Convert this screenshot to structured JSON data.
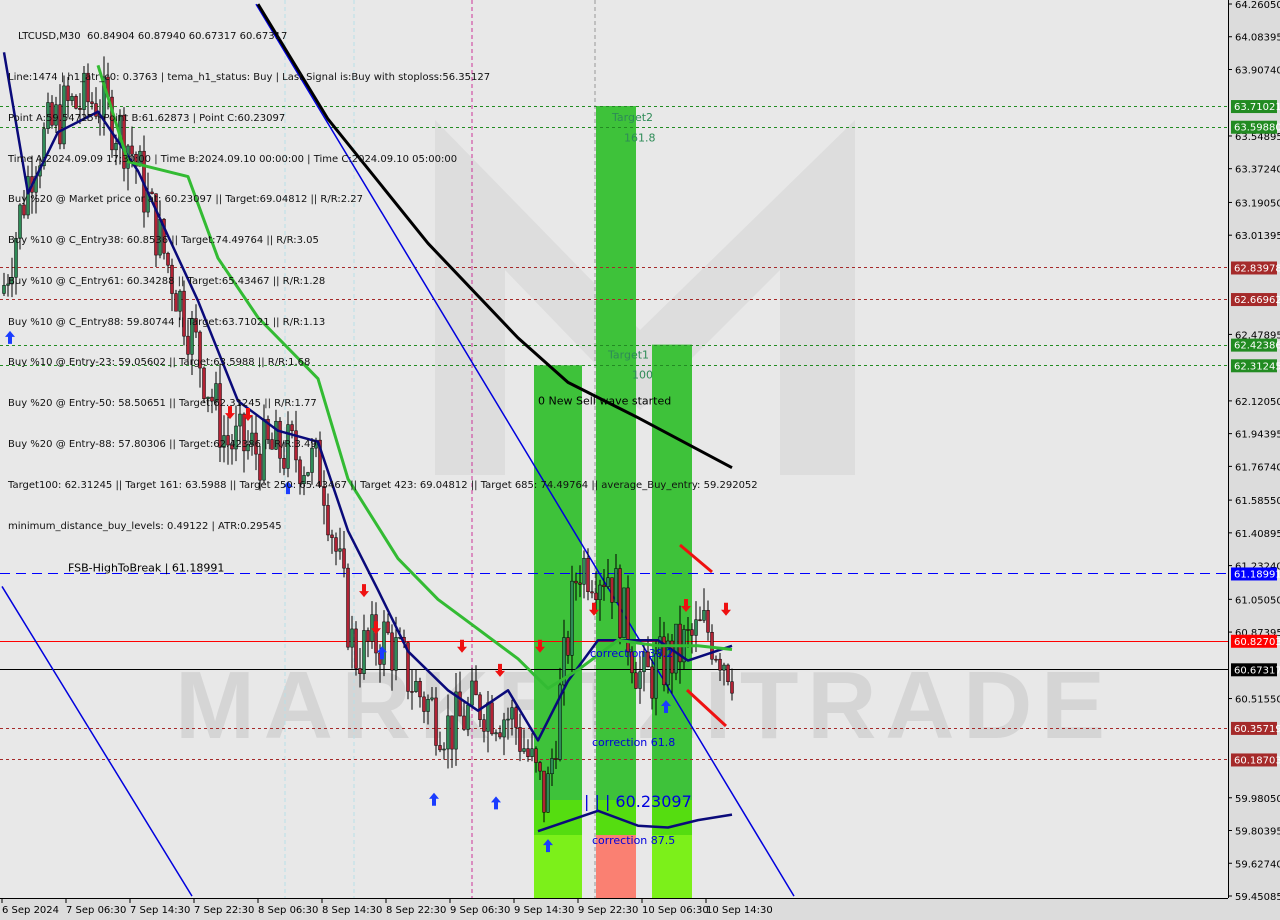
{
  "header": {
    "title_line": "LTCUSD,M30  60.84904 60.87940 60.67317 60.67317",
    "info_lines": [
      "Line:1474 | h1_atr_c0: 0.3763 | tema_h1_status: Buy | Last Signal is:Buy with stoploss:56.35127",
      "Point A:59.54725 | Point B:61.62873 | Point C:60.23097",
      "Time A:2024.09.09 17:30:00 | Time B:2024.09.10 00:00:00 | Time C:2024.09.10 05:00:00",
      "Buy %20 @ Market price or at: 60.23097 || Target:69.04812 || R/R:2.27",
      "Buy %10 @ C_Entry38: 60.8536 || Target:74.49764 || R/R:3.05",
      "Buy %10 @ C_Entry61: 60.34288 || Target:65.43467 || R/R:1.28",
      "Buy %10 @ C_Entry88: 59.80744 || Target:63.71021 || R/R:1.13",
      "Buy %10 @ Entry-23: 59.05602 || Target:63.5988 || R/R:1.68",
      "Buy %20 @ Entry-50: 58.50651 || Target:62.31245 || R/R:1.77",
      "Buy %20 @ Entry-88: 57.80306 || Target:62.42386 || R/R:3.49",
      "Target100: 62.31245 || Target 161: 63.5988 || Target 250: 65.43467 || Target 423: 69.04812 || Target 685: 74.49764 || average_Buy_entry: 59.292052",
      "minimum_distance_buy_levels: 0.49122 | ATR:0.29545"
    ]
  },
  "watermark": "MARKETZITRADE",
  "chart_data": {
    "type": "candlestick",
    "symbol": "LTCUSD",
    "timeframe": "M30",
    "ylim": [
      59.45085,
      64.2605
    ],
    "y_ticks": [
      "64.26050",
      "64.08395",
      "63.90740",
      "63.54895",
      "63.37240",
      "63.19050",
      "63.01395",
      "62.47895",
      "62.12050",
      "61.94395",
      "61.76740",
      "61.58550",
      "61.40895",
      "61.23240",
      "61.05050",
      "60.87395",
      "60.51550",
      "59.98050",
      "59.80395",
      "59.62740",
      "59.45085"
    ],
    "x_ticks": [
      {
        "t": "2024-09-06 22:30",
        "label": "6 Sep 2024"
      },
      {
        "t": "2024-09-07 06:30",
        "label": "7 Sep 06:30"
      },
      {
        "t": "2024-09-07 14:30",
        "label": "7 Sep 14:30"
      },
      {
        "t": "2024-09-07 22:30",
        "label": "7 Sep 22:30"
      },
      {
        "t": "2024-09-08 06:30",
        "label": "8 Sep 06:30"
      },
      {
        "t": "2024-09-08 14:30",
        "label": "8 Sep 14:30"
      },
      {
        "t": "2024-09-08 22:30",
        "label": "8 Sep 22:30"
      },
      {
        "t": "2024-09-09 06:30",
        "label": "9 Sep 06:30"
      },
      {
        "t": "2024-09-09 14:30",
        "label": "9 Sep 14:30"
      },
      {
        "t": "2024-09-09 22:30",
        "label": "9 Sep 22:30"
      },
      {
        "t": "2024-09-10 06:30",
        "label": "10 Sep 06:30"
      },
      {
        "t": "2024-09-10 14:30",
        "label": "10 Sep 14:30"
      }
    ],
    "price_path": [
      [
        "2024-09-06 22:30",
        62.7
      ],
      [
        "2024-09-07 02:30",
        63.45
      ],
      [
        "2024-09-07 06:30",
        63.7
      ],
      [
        "2024-09-07 10:30",
        63.75
      ],
      [
        "2024-09-07 14:30",
        63.5
      ],
      [
        "2024-09-07 18:30",
        62.95
      ],
      [
        "2024-09-07 22:30",
        62.45
      ],
      [
        "2024-09-08 02:30",
        61.9
      ],
      [
        "2024-09-08 06:30",
        61.85
      ],
      [
        "2024-09-08 10:30",
        61.85
      ],
      [
        "2024-09-08 14:30",
        61.75
      ],
      [
        "2024-09-08 18:30",
        60.75
      ],
      [
        "2024-09-08 22:30",
        60.85
      ],
      [
        "2024-09-09 02:30",
        60.55
      ],
      [
        "2024-09-09 06:30",
        60.35
      ],
      [
        "2024-09-09 10:30",
        60.5
      ],
      [
        "2024-09-09 14:30",
        60.4
      ],
      [
        "2024-09-09 18:30",
        59.95
      ],
      [
        "2024-09-09 22:30",
        61.25
      ],
      [
        "2024-09-10 02:30",
        61.2
      ],
      [
        "2024-09-10 06:30",
        60.6
      ],
      [
        "2024-09-10 10:30",
        60.75
      ],
      [
        "2024-09-10 14:30",
        60.9
      ],
      [
        "2024-09-10 18:00",
        60.67
      ]
    ],
    "moving_averages": [
      {
        "color": "#000000",
        "points": [
          [
            "2024-09-08 06:30",
            64.26
          ],
          [
            "2024-09-08 15:15",
            63.64
          ],
          [
            "2024-09-09 03:45",
            62.97
          ],
          [
            "2024-09-09 15:00",
            62.46
          ],
          [
            "2024-09-09 21:15",
            62.22
          ],
          [
            "2024-09-10 06:00",
            62.03
          ],
          [
            "2024-09-10 17:45",
            61.76
          ]
        ]
      },
      {
        "color": "#0a0a7a",
        "points": [
          [
            "2024-09-06 22:45",
            64.0
          ],
          [
            "2024-09-07 01:45",
            63.24
          ],
          [
            "2024-09-07 05:30",
            63.57
          ],
          [
            "2024-09-07 10:30",
            63.68
          ],
          [
            "2024-09-07 15:30",
            63.36
          ],
          [
            "2024-09-07 23:00",
            62.66
          ],
          [
            "2024-09-08 04:00",
            62.12
          ],
          [
            "2024-09-08 09:00",
            61.96
          ],
          [
            "2024-09-08 14:00",
            61.9
          ],
          [
            "2024-09-08 17:45",
            61.42
          ],
          [
            "2024-09-08 21:30",
            61.1
          ],
          [
            "2024-09-09 01:15",
            60.77
          ],
          [
            "2024-09-09 06:15",
            60.56
          ],
          [
            "2024-09-09 10:00",
            60.45
          ],
          [
            "2024-09-09 13:45",
            60.56
          ],
          [
            "2024-09-09 17:30",
            60.29
          ],
          [
            "2024-09-09 21:15",
            60.61
          ],
          [
            "2024-09-10 01:00",
            60.83
          ],
          [
            "2024-09-10 04:45",
            60.83
          ],
          [
            "2024-09-10 08:30",
            60.83
          ],
          [
            "2024-09-10 12:15",
            60.72
          ],
          [
            "2024-09-10 17:45",
            60.8
          ]
        ]
      },
      {
        "color": "#33bb33",
        "points": [
          [
            "2024-09-07 10:30",
            63.93
          ],
          [
            "2024-09-07 14:15",
            63.41
          ],
          [
            "2024-09-07 21:45",
            63.33
          ],
          [
            "2024-09-08 01:30",
            62.89
          ],
          [
            "2024-09-08 06:30",
            62.57
          ],
          [
            "2024-09-08 14:00",
            62.24
          ],
          [
            "2024-09-08 17:45",
            61.7
          ],
          [
            "2024-09-09 00:00",
            61.27
          ],
          [
            "2024-09-09 05:00",
            61.05
          ],
          [
            "2024-09-09 10:00",
            60.89
          ],
          [
            "2024-09-09 15:00",
            60.73
          ],
          [
            "2024-09-09 18:45",
            60.57
          ],
          [
            "2024-09-09 22:30",
            60.67
          ],
          [
            "2024-09-10 03:30",
            60.83
          ],
          [
            "2024-09-10 08:30",
            60.8
          ],
          [
            "2024-09-10 13:30",
            60.8
          ],
          [
            "2024-09-10 17:45",
            60.78
          ]
        ]
      },
      {
        "color": "#0a0a7a",
        "points": [
          [
            "2024-09-09 17:30",
            59.8
          ],
          [
            "2024-09-10 01:00",
            59.91
          ],
          [
            "2024-09-10 06:00",
            59.83
          ],
          [
            "2024-09-10 09:45",
            59.82
          ],
          [
            "2024-09-10 13:30",
            59.86
          ],
          [
            "2024-09-10 17:45",
            59.89
          ]
        ]
      }
    ],
    "trendlines": [
      {
        "color": "#0000dd",
        "from": [
          "2024-09-08 06:15",
          64.26
        ],
        "to": [
          "2024-09-11 01:30",
          59.45
        ]
      },
      {
        "color": "#0000dd",
        "from": [
          "2024-09-06 22:30",
          61.12
        ],
        "to": [
          "2024-09-07 22:15",
          59.45
        ]
      }
    ],
    "levels": [
      {
        "price": 63.71021,
        "label": "63.71021",
        "color": "#228b22",
        "style": "dashed"
      },
      {
        "price": 63.5988,
        "label": "63.59880",
        "color": "#228b22",
        "style": "dashed"
      },
      {
        "price": 62.83978,
        "label": "62.83978",
        "color": "#a52a2a",
        "style": "dashed"
      },
      {
        "price": 62.66962,
        "label": "62.66962",
        "color": "#a52a2a",
        "style": "dashed"
      },
      {
        "price": 62.42386,
        "label": "62.42386",
        "color": "#228b22",
        "style": "dashed"
      },
      {
        "price": 62.31245,
        "label": "62.31245",
        "color": "#228b22",
        "style": "dashed"
      },
      {
        "price": 61.18991,
        "label": "61.18991",
        "color": "#0000ff",
        "style": "longdash"
      },
      {
        "price": 60.82703,
        "label": "60.82703",
        "color": "#ff0000",
        "style": "solid"
      },
      {
        "price": 60.67317,
        "label": "60.67317",
        "color": "#000000",
        "style": "solid"
      },
      {
        "price": 60.35719,
        "label": "60.35719",
        "color": "#a52a2a",
        "style": "dashed"
      },
      {
        "price": 60.18703,
        "label": "60.18703",
        "color": "#a52a2a",
        "style": "dashed"
      }
    ],
    "zones": [
      {
        "from": "2024-09-09 17:00",
        "to": "2024-09-09 23:00",
        "top": 62.31245,
        "color": "#3ec23a",
        "bottom_color": "#7cf01a"
      },
      {
        "from": "2024-09-10 00:45",
        "to": "2024-09-10 05:45",
        "top": 63.71021,
        "color": "#3ec23a",
        "bottom_color": "#fa8072"
      },
      {
        "from": "2024-09-10 07:45",
        "to": "2024-09-10 12:45",
        "top": 62.42386,
        "color": "#3ec23a",
        "bottom_color": "#7cf01a"
      }
    ],
    "annotations": [
      {
        "text": "Target2",
        "t": "2024-09-10 02:45",
        "p": 63.63,
        "color": "#2e8b57"
      },
      {
        "text": "161.8",
        "t": "2024-09-10 04:15",
        "p": 63.52,
        "color": "#2e8b57"
      },
      {
        "text": "Target1",
        "t": "2024-09-10 02:15",
        "p": 62.35,
        "color": "#2e8b57"
      },
      {
        "text": "100",
        "t": "2024-09-10 05:15",
        "p": 62.24,
        "color": "#2e8b57"
      },
      {
        "text": "0 New Sell wave started",
        "t": "2024-09-09 17:30",
        "p": 62.1,
        "color": "#000000"
      },
      {
        "text": "correction 38.2",
        "t": "2024-09-10 00:00",
        "p": 60.74,
        "color": "#0000dd"
      },
      {
        "text": "correction 61.8",
        "t": "2024-09-10 00:15",
        "p": 60.26,
        "color": "#0000dd"
      },
      {
        "text": "| | | 60.23097",
        "t": "2024-09-09 23:15",
        "p": 59.93,
        "color": "#0000dd",
        "big": true
      },
      {
        "text": "correction 87.5",
        "t": "2024-09-10 00:15",
        "p": 59.73,
        "color": "#0000dd"
      },
      {
        "text": "FSB-HighToBreak | 61.18991",
        "t": "2024-09-07 06:45",
        "p": 61.2,
        "color": "#000000"
      }
    ],
    "signals": [
      {
        "type": "buy",
        "t": "2024-09-06 23:30",
        "p": 62.46
      },
      {
        "type": "buy",
        "t": "2024-09-08 10:15",
        "p": 61.65
      },
      {
        "type": "buy",
        "t": "2024-09-08 22:00",
        "p": 60.76
      },
      {
        "type": "buy",
        "t": "2024-09-09 04:30",
        "p": 59.97
      },
      {
        "type": "buy",
        "t": "2024-09-09 12:15",
        "p": 59.95
      },
      {
        "type": "buy",
        "t": "2024-09-09 18:45",
        "p": 59.72
      },
      {
        "type": "buy",
        "t": "2024-09-10 09:30",
        "p": 60.47
      },
      {
        "type": "sell",
        "t": "2024-09-08 03:00",
        "p": 62.06
      },
      {
        "type": "sell",
        "t": "2024-09-08 05:15",
        "p": 62.05
      },
      {
        "type": "sell",
        "t": "2024-09-08 19:45",
        "p": 61.1
      },
      {
        "type": "sell",
        "t": "2024-09-08 21:15",
        "p": 60.9
      },
      {
        "type": "sell",
        "t": "2024-09-09 08:00",
        "p": 60.8
      },
      {
        "type": "sell",
        "t": "2024-09-09 12:45",
        "p": 60.67
      },
      {
        "type": "sell",
        "t": "2024-09-09 17:45",
        "p": 60.8
      },
      {
        "type": "sell",
        "t": "2024-09-10 00:30",
        "p": 61.0
      },
      {
        "type": "sell",
        "t": "2024-09-10 12:00",
        "p": 61.02
      },
      {
        "type": "sell",
        "t": "2024-09-10 17:00",
        "p": 61.0
      }
    ]
  }
}
